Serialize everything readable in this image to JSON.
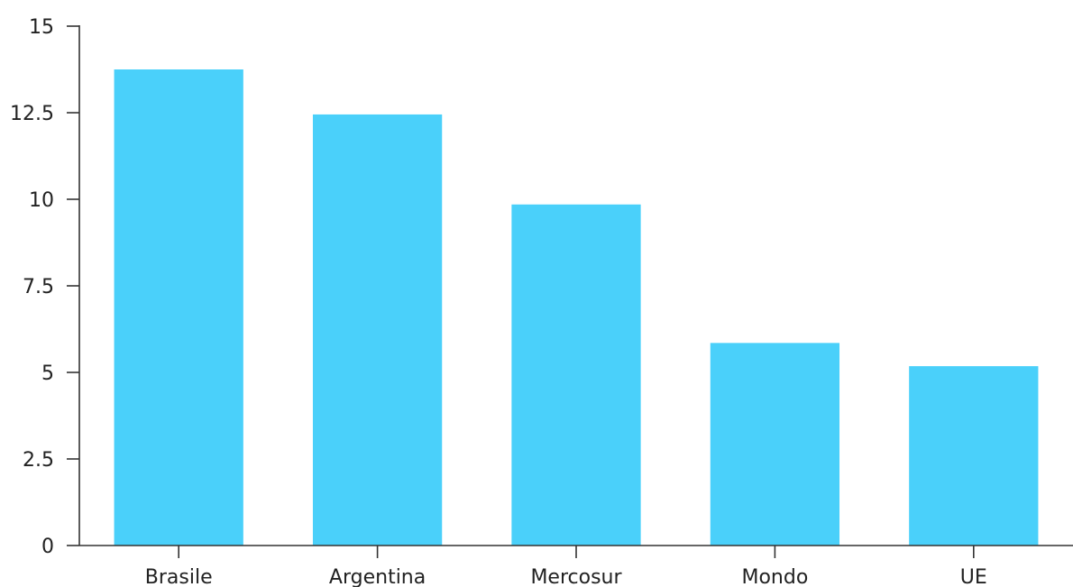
{
  "chart_data": {
    "type": "bar",
    "categories": [
      "Brasile",
      "Argentina",
      "Mercosur",
      "Mondo",
      "UE"
    ],
    "values": [
      13.75,
      12.45,
      9.85,
      5.85,
      5.18
    ],
    "ylim": [
      0,
      15
    ],
    "yticks": [
      0,
      2.5,
      5,
      7.5,
      10,
      12.5,
      15
    ],
    "ytick_labels": [
      "0",
      "2.5",
      "5",
      "7.5",
      "10",
      "12.5",
      "15"
    ],
    "bar_color": "#4ad0fa",
    "grid": false,
    "legend": "none"
  }
}
